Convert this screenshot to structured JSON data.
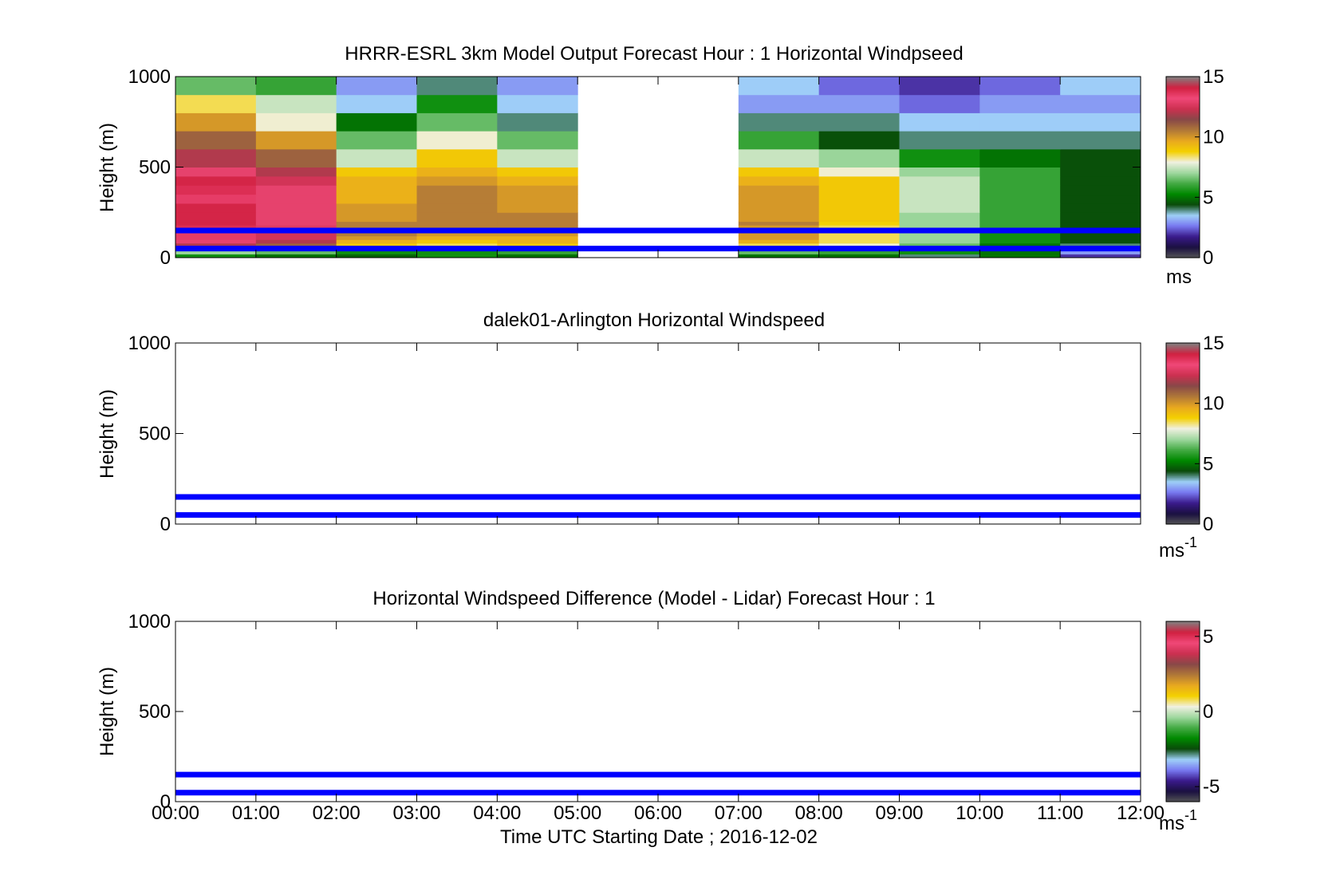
{
  "figure": {
    "xlabel": "Time UTC  Starting Date ; 2016-12-02",
    "xticks": [
      "00:00",
      "01:00",
      "02:00",
      "03:00",
      "04:00",
      "05:00",
      "06:00",
      "07:00",
      "08:00",
      "09:00",
      "10:00",
      "11:00",
      "12:00"
    ]
  },
  "chart_data": [
    {
      "type": "heatmap",
      "title": "HRRR-ESRL 3km Model Output   Forecast Hour : 1 Horizontal Windpseed",
      "ylabel": "Height (m)",
      "yticks": [
        "0",
        "500",
        "1000"
      ],
      "xlim": [
        0,
        12
      ],
      "ylim": [
        0,
        1000
      ],
      "colorbar": {
        "ticks": [
          "0",
          "5",
          "10",
          "15"
        ],
        "tick_values": [
          0,
          5,
          10,
          15
        ],
        "range": [
          0,
          15
        ],
        "unit_label": "ms"
      },
      "reference_lines_m": [
        150,
        50
      ],
      "line_color": "#0000ff",
      "columns_start_hours": [
        0,
        1,
        2,
        3,
        4,
        7,
        8,
        9,
        10,
        11
      ],
      "column_width_hours": 1,
      "levels_m": [
        0,
        20,
        40,
        60,
        80,
        100,
        120,
        140,
        160,
        180,
        200,
        250,
        300,
        350,
        400,
        450,
        500,
        600,
        700,
        800,
        900,
        1000
      ],
      "values": [
        [
          5.5,
          5.0,
          4.8,
          5.5,
          5.0,
          5.0,
          5.0,
          4.0,
          5.0,
          2.0
        ],
        [
          7.0,
          6.5,
          5.5,
          5.5,
          6.0,
          6.5,
          6.0,
          5.5,
          5.0,
          3.0
        ],
        [
          11.0,
          10.0,
          7.5,
          7.0,
          8.0,
          7.5,
          7.0,
          6.0,
          5.0,
          4.0
        ],
        [
          12.0,
          11.0,
          9.0,
          8.5,
          9.0,
          8.5,
          8.0,
          6.5,
          5.0,
          4.0
        ],
        [
          13.0,
          12.0,
          9.5,
          9.0,
          9.5,
          9.5,
          8.5,
          7.0,
          5.5,
          4.5
        ],
        [
          13.5,
          12.5,
          10.0,
          9.5,
          9.5,
          10.0,
          8.5,
          7.0,
          5.5,
          4.5
        ],
        [
          13.5,
          12.5,
          10.5,
          10.0,
          10.0,
          10.0,
          8.5,
          7.0,
          5.5,
          4.5
        ],
        [
          13.5,
          12.5,
          10.5,
          10.5,
          10.5,
          10.0,
          8.5,
          7.0,
          6.0,
          4.5
        ],
        [
          13.8,
          12.8,
          10.5,
          10.5,
          10.5,
          10.0,
          8.5,
          7.0,
          6.0,
          4.5
        ],
        [
          14.0,
          13.0,
          10.5,
          10.5,
          10.5,
          10.5,
          8.8,
          7.0,
          6.0,
          4.5
        ],
        [
          14.0,
          13.0,
          10.0,
          10.5,
          10.5,
          10.0,
          9.0,
          7.0,
          6.0,
          4.5
        ],
        [
          14.0,
          13.0,
          10.0,
          10.5,
          10.0,
          10.0,
          9.0,
          7.5,
          6.0,
          4.5
        ],
        [
          13.5,
          13.0,
          9.5,
          10.5,
          10.0,
          10.0,
          9.0,
          7.5,
          6.0,
          4.5
        ],
        [
          13.8,
          13.0,
          9.5,
          10.5,
          10.0,
          10.0,
          9.0,
          7.5,
          6.0,
          4.5
        ],
        [
          14.0,
          12.5,
          9.5,
          10.0,
          9.5,
          9.5,
          9.0,
          7.5,
          6.0,
          4.5
        ],
        [
          13.0,
          12.0,
          9.0,
          9.5,
          9.0,
          9.0,
          8.0,
          7.0,
          6.0,
          4.5
        ],
        [
          12.0,
          11.0,
          7.5,
          9.0,
          7.5,
          7.5,
          7.0,
          5.5,
          5.0,
          4.5
        ],
        [
          11.0,
          10.0,
          6.5,
          8.0,
          6.5,
          6.0,
          4.5,
          4.0,
          4.0,
          4.0
        ],
        [
          10.0,
          8.0,
          5.0,
          6.5,
          4.0,
          4.0,
          4.0,
          3.5,
          3.5,
          3.5
        ],
        [
          8.5,
          7.5,
          3.5,
          5.5,
          3.5,
          3.0,
          3.0,
          2.5,
          3.0,
          3.0
        ],
        [
          6.5,
          6.0,
          3.0,
          4.0,
          3.0,
          3.5,
          2.5,
          2.0,
          2.5,
          3.5
        ]
      ]
    },
    {
      "type": "heatmap",
      "title": "dalek01-Arlington  Horizontal Windspeed",
      "ylabel": "Height (m)",
      "yticks": [
        "0",
        "500",
        "1000"
      ],
      "xlim": [
        0,
        12
      ],
      "ylim": [
        0,
        1000
      ],
      "colorbar": {
        "ticks": [
          "0",
          "5",
          "10",
          "15"
        ],
        "tick_values": [
          0,
          5,
          10,
          15
        ],
        "range": [
          0,
          15
        ],
        "unit_label": "ms",
        "unit_exponent": "-1"
      },
      "reference_lines_m": [
        150,
        50
      ],
      "line_color": "#0000ff",
      "values": []
    },
    {
      "type": "heatmap",
      "title": "Horizontal Windspeed Difference (Model - Lidar) Forecast Hour : 1",
      "ylabel": "Height (m)",
      "yticks": [
        "0",
        "500",
        "1000"
      ],
      "xlim": [
        0,
        12
      ],
      "ylim": [
        0,
        1000
      ],
      "colorbar": {
        "ticks": [
          "-5",
          "0",
          "5"
        ],
        "tick_values": [
          -5,
          0,
          5
        ],
        "range": [
          -6,
          6
        ],
        "unit_label": "ms",
        "unit_exponent": "-1"
      },
      "reference_lines_m": [
        150,
        50
      ],
      "line_color": "#0000ff",
      "values": []
    }
  ],
  "colormap_stops": [
    "#555555",
    "#1a1040",
    "#3a1a8a",
    "#7878f0",
    "#9fd0f8",
    "#0a4a0a",
    "#008800",
    "#44aa44",
    "#a0d8a0",
    "#f0f0e0",
    "#f4d000",
    "#e8a820",
    "#b07838",
    "#884848",
    "#cc3050",
    "#f04878",
    "#d02040",
    "#808080"
  ]
}
